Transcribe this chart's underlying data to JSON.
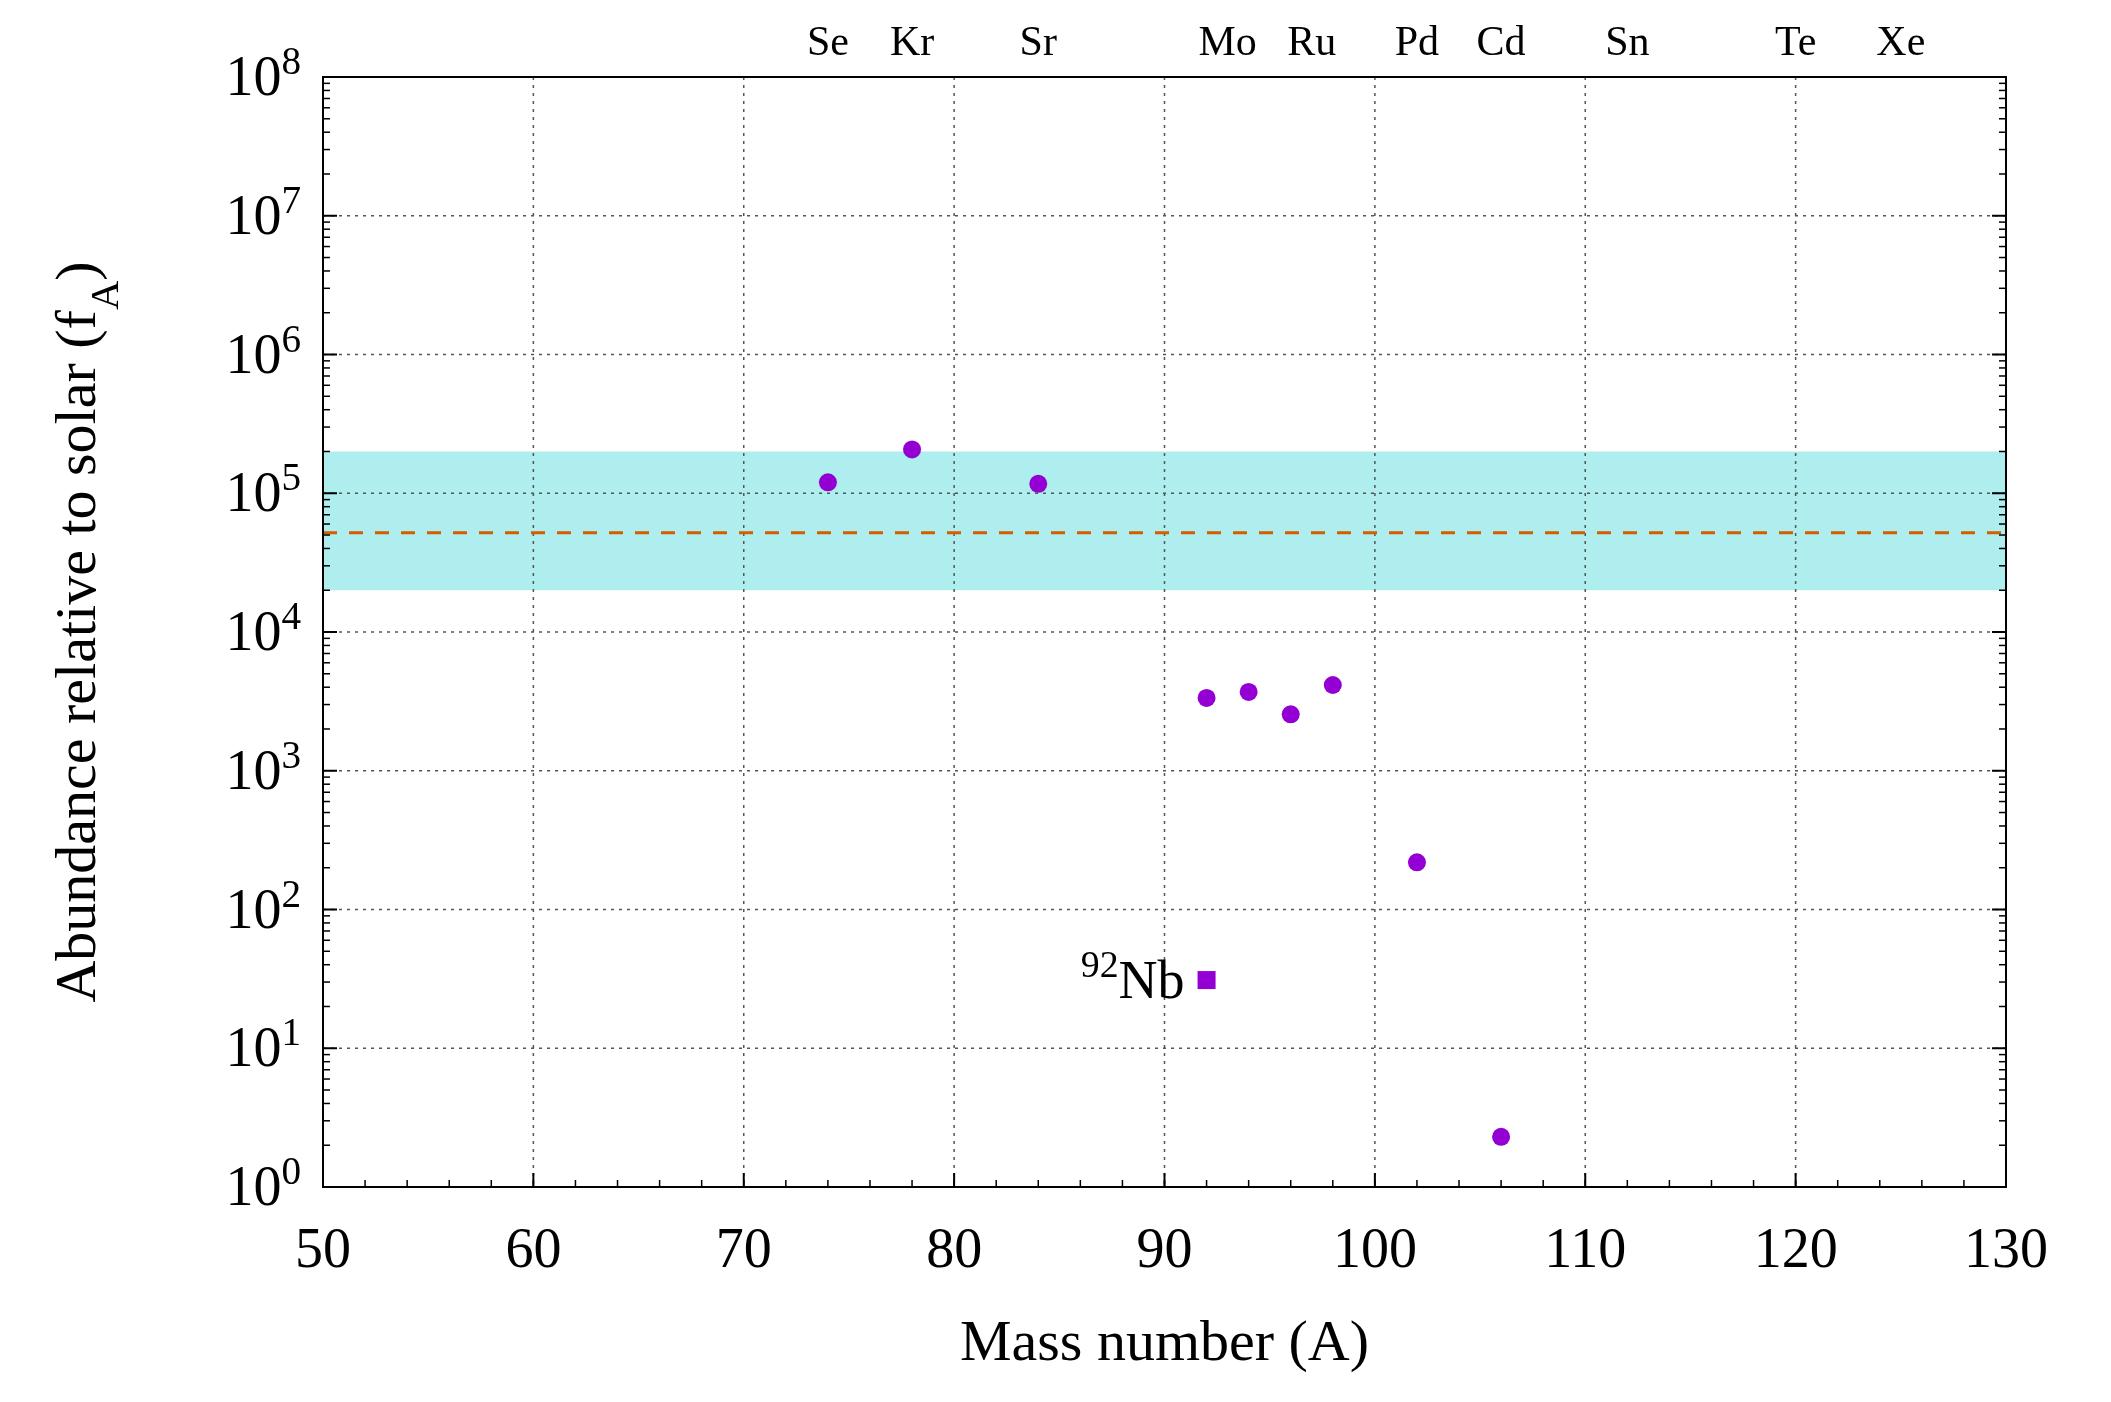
{
  "chart_data": {
    "type": "scatter",
    "xlabel": "Mass number (A)",
    "ylabel": "Abundance relative to solar (f$_{A}$)",
    "xlim": [
      50,
      130
    ],
    "xticks": [
      50,
      60,
      70,
      80,
      90,
      100,
      110,
      120,
      130
    ],
    "ylim": [
      1,
      100000000
    ],
    "yticks": [
      {
        "value": 1,
        "label": "10$^{0}$"
      },
      {
        "value": 10,
        "label": "10$^{1}$"
      },
      {
        "value": 100,
        "label": "10$^{2}$"
      },
      {
        "value": 1000,
        "label": "10$^{3}$"
      },
      {
        "value": 10000,
        "label": "10$^{4}$"
      },
      {
        "value": 100000,
        "label": "10$^{5}$"
      },
      {
        "value": 1000000,
        "label": "10$^{6}$"
      },
      {
        "value": 10000000,
        "label": "10$^{7}$"
      },
      {
        "value": 100000000,
        "label": "10$^{8}$"
      }
    ],
    "log": "y",
    "grid": true,
    "bands": [
      {
        "axis": "y",
        "from": 20000,
        "to": 200000,
        "color": "#afeeee"
      }
    ],
    "ref_lines": [
      {
        "axis": "y",
        "value": 52000,
        "color": "#d55e00",
        "line_style": "dashed"
      }
    ],
    "series": [
      {
        "marker": "circle",
        "color": "#9400d3",
        "x": [
          74,
          78,
          84,
          92,
          94,
          96,
          98,
          102,
          106
        ],
        "values": [
          120000,
          207000,
          117000,
          3350,
          3700,
          2550,
          4150,
          219,
          2.3
        ]
      },
      {
        "marker": "square",
        "color": "#9400d3",
        "x": [
          92
        ],
        "values": [
          31
        ]
      }
    ],
    "annotations": [
      {
        "text": "$^{92}$Nb",
        "x": 92,
        "y": 31
      },
      "Se",
      "Kr",
      "Sr",
      "Mo",
      "Ru",
      "Pd",
      "Cd",
      "Sn",
      "Te",
      "Xe"
    ]
  }
}
